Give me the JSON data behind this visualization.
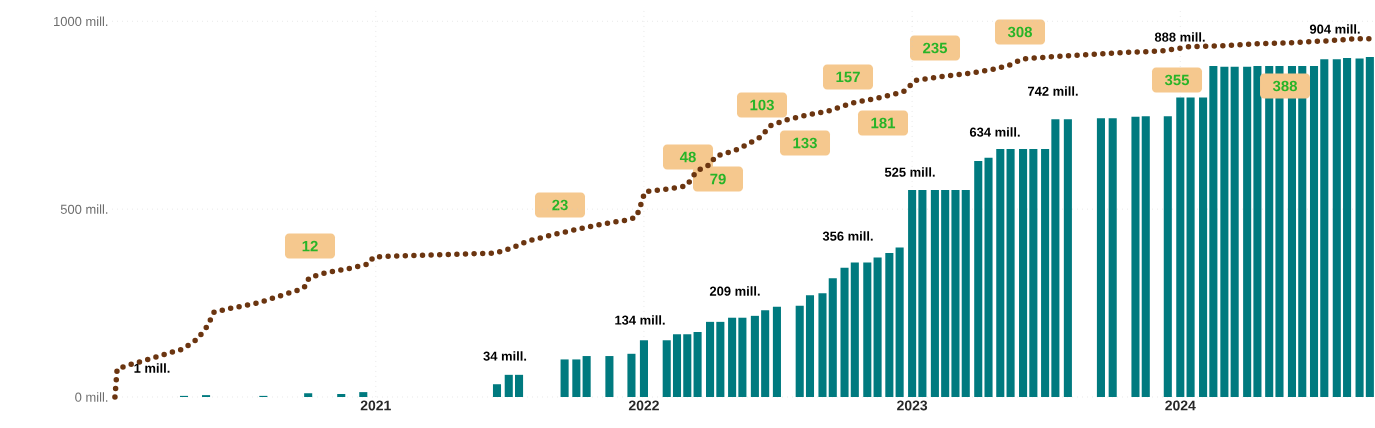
{
  "chart_data": {
    "type": "bar",
    "xlim": [
      "2020-01-08",
      "2024-09-22"
    ],
    "ylim": [
      0,
      1030
    ],
    "xticks": [
      "2021",
      "2022",
      "2023",
      "2024"
    ],
    "yticks": [
      {
        "value": 0,
        "label": "0 mill."
      },
      {
        "value": 500,
        "label": "500 mill."
      },
      {
        "value": 1000,
        "label": "1000 mill."
      }
    ],
    "grid": true,
    "series": [
      {
        "color": "#007a7f",
        "x": [
          "2020-04-15",
          "2020-05-01",
          "2020-05-15",
          "2020-06-01",
          "2020-06-15",
          "2020-07-01",
          "2020-07-15",
          "2020-08-01",
          "2020-08-15",
          "2020-09-01",
          "2020-09-15",
          "2020-10-01",
          "2020-10-15",
          "2020-11-01",
          "2020-11-15",
          "2020-12-01",
          "2020-12-15",
          "2021-01-01",
          "2021-01-15",
          "2021-02-01",
          "2021-02-15",
          "2021-03-01",
          "2021-03-15",
          "2021-04-01",
          "2021-04-15",
          "2021-05-01",
          "2021-05-15",
          "2021-06-01",
          "2021-06-15",
          "2021-07-01",
          "2021-07-15",
          "2021-08-01",
          "2021-08-15",
          "2021-09-01",
          "2021-09-15",
          "2021-10-01",
          "2021-10-15",
          "2021-11-01",
          "2021-11-15",
          "2021-12-01",
          "2021-12-15",
          "2022-01-01",
          "2022-01-15",
          "2022-02-01",
          "2022-02-15",
          "2022-03-01",
          "2022-03-15",
          "2022-04-01",
          "2022-04-15",
          "2022-05-01",
          "2022-05-15",
          "2022-06-01",
          "2022-06-15",
          "2022-07-01",
          "2022-07-15",
          "2022-08-01",
          "2022-08-15",
          "2022-09-01",
          "2022-09-15",
          "2022-10-01",
          "2022-10-15",
          "2022-11-01",
          "2022-11-15",
          "2022-12-01",
          "2022-12-15",
          "2023-01-01",
          "2023-01-15",
          "2023-02-01",
          "2023-02-15",
          "2023-03-01",
          "2023-03-15",
          "2023-04-01",
          "2023-04-15",
          "2023-05-01",
          "2023-05-15",
          "2023-06-01",
          "2023-06-15",
          "2023-07-01",
          "2023-07-15",
          "2023-08-01",
          "2023-08-15",
          "2023-09-01",
          "2023-09-15",
          "2023-10-01",
          "2023-10-15",
          "2023-11-01",
          "2023-11-15",
          "2023-12-01",
          "2023-12-15",
          "2024-01-01",
          "2024-01-15",
          "2024-02-01",
          "2024-02-15",
          "2024-03-01",
          "2024-03-15",
          "2024-04-01",
          "2024-04-15",
          "2024-05-01",
          "2024-05-15",
          "2024-06-01",
          "2024-06-15",
          "2024-07-01",
          "2024-07-15",
          "2024-08-01",
          "2024-08-15",
          "2024-09-01",
          "2024-09-15"
        ],
        "values": [
          3,
          null,
          5,
          null,
          null,
          null,
          null,
          3,
          null,
          null,
          null,
          10,
          null,
          null,
          8,
          null,
          13,
          null,
          null,
          null,
          null,
          null,
          null,
          null,
          null,
          null,
          null,
          null,
          34,
          59,
          59,
          null,
          null,
          null,
          100,
          100,
          109,
          null,
          109,
          null,
          115,
          151,
          null,
          151,
          167,
          167,
          173,
          200,
          200,
          211,
          211,
          216,
          231,
          240,
          null,
          243,
          271,
          276,
          316,
          344,
          358,
          358,
          371,
          383,
          398,
          551,
          551,
          551,
          551,
          551,
          551,
          628,
          637,
          660,
          660,
          660,
          660,
          660,
          739,
          739,
          null,
          null,
          742,
          742,
          null,
          746,
          747,
          null,
          747,
          797,
          797,
          797,
          881,
          879,
          879,
          879,
          881,
          881,
          881,
          881,
          881,
          881,
          899,
          899,
          902,
          901,
          905
        ]
      },
      {
        "type": "line",
        "color": "#6b3510",
        "line_style": "dotted",
        "x": [
          "2020-01-12",
          "2020-01-15",
          "2020-02-05",
          "2020-02-28",
          "2020-03-22",
          "2020-04-14",
          "2020-05-03",
          "2020-05-17",
          "2020-05-26",
          "2020-06-20",
          "2020-07-24",
          "2020-08-28",
          "2020-09-19",
          "2020-09-28",
          "2020-10-02",
          "2020-10-24",
          "2020-11-28",
          "2020-12-22",
          "2020-12-29",
          "2021-03-17",
          "2021-06-13",
          "2021-07-06",
          "2021-07-27",
          "2021-08-30",
          "2021-10-04",
          "2021-11-07",
          "2021-12-12",
          "2021-12-22",
          "2021-12-30",
          "2022-01-02",
          "2022-02-05",
          "2022-02-28",
          "2022-03-14",
          "2022-04-03",
          "2022-04-07",
          "2022-05-10",
          "2022-06-09",
          "2022-06-22",
          "2022-07-15",
          "2022-08-06",
          "2022-09-10",
          "2022-10-13",
          "2022-11-16",
          "2022-12-20",
          "2022-12-28",
          "2023-01-04",
          "2023-02-07",
          "2023-03-14",
          "2023-04-19",
          "2023-05-12",
          "2023-06-01",
          "2023-07-07",
          "2023-09-01",
          "2023-10-08",
          "2023-12-07",
          "2024-01-12",
          "2024-02-28",
          "2024-04-16",
          "2024-06-02",
          "2024-07-20",
          "2024-08-23",
          "2024-09-19"
        ],
        "values": [
          0,
          75,
          88,
          101,
          115,
          128,
          154,
          189,
          226,
          237,
          250,
          272,
          285,
          296,
          317,
          330,
          343,
          354,
          373,
          378,
          383,
          397,
          415,
          432,
          447,
          461,
          472,
          480,
          525,
          546,
          554,
          562,
          602,
          621,
          639,
          660,
          692,
          722,
          738,
          748,
          762,
          783,
          796,
          812,
          826,
          842,
          852,
          860,
          871,
          882,
          900,
          905,
          912,
          916,
          921,
          932,
          935,
          940,
          943,
          948,
          953,
          954
        ]
      }
    ],
    "annotations": [
      "1 mill.",
      "34 mill.",
      "134 mill.",
      "209 mill.",
      "356 mill.",
      "525 mill.",
      "634 mill.",
      "742 mill.",
      "888 mill.",
      "904 mill.",
      "12",
      "23",
      "48",
      "79",
      "103",
      "133",
      "157",
      "181",
      "235",
      "308",
      "355",
      "388"
    ]
  }
}
